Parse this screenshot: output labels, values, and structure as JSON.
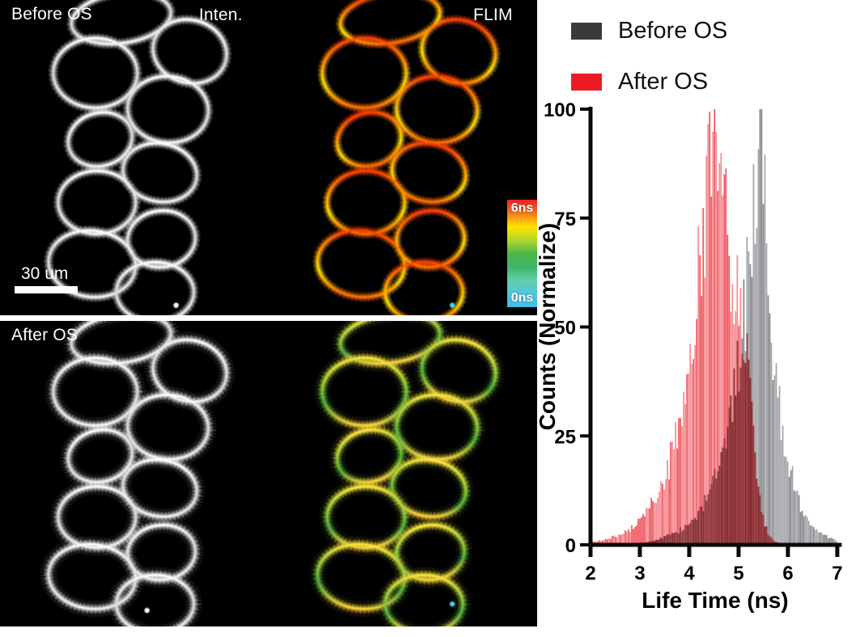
{
  "figure": {
    "panels": {
      "before": {
        "condition_label": "Before OS",
        "intensity_label": "Inten.",
        "flim_label": "FLIM"
      },
      "after": {
        "condition_label": "After OS"
      }
    },
    "scale_bar": {
      "label": "30 um"
    },
    "colorbar": {
      "top_label": "6ns",
      "bottom_label": "0ns",
      "gradient": [
        "#ec1c24",
        "#f4781f",
        "#ffe400",
        "#b5d62c",
        "#4bb649",
        "#3db56a",
        "#62cfa9",
        "#4fc6e0",
        "#41bde8"
      ]
    },
    "flim_top_palette": [
      "#ff3d00",
      "#ff9500",
      "#ffdf00",
      "#ff6a00"
    ],
    "flim_bottom_palette": [
      "#ffe93c",
      "#a8d23a",
      "#4fb03c",
      "#ffd23c"
    ],
    "intensity_palette": [
      "#ffffff",
      "#d8d8d8",
      "#f4f4f4"
    ]
  },
  "legend": {
    "items": [
      {
        "label": "Before OS",
        "color": "#3a3a3a"
      },
      {
        "label": "After OS",
        "color": "#ed1c24"
      }
    ]
  },
  "chart_data": {
    "type": "bar",
    "title": "",
    "xlabel": "Life Time (ns)",
    "ylabel": "Counts  (Normalize)",
    "xlim": [
      2,
      7
    ],
    "ylim": [
      0,
      100
    ],
    "x_ticks": [
      2,
      3,
      4,
      5,
      6,
      7
    ],
    "y_ticks": [
      0,
      25,
      50,
      75,
      100
    ],
    "grid": false,
    "legend_position": "top-left",
    "x_start": 2.0,
    "x_step": 0.1,
    "series": [
      {
        "name": "Before OS",
        "color": "#96969b",
        "values": [
          0,
          0,
          0,
          0,
          0,
          0,
          0.2,
          0.2,
          0.3,
          0.4,
          0.5,
          0.7,
          0.9,
          1.2,
          1.5,
          2,
          2.5,
          3,
          3.7,
          4.5,
          5.5,
          7,
          9,
          11,
          14,
          17,
          21,
          26,
          33,
          40,
          47,
          57,
          72,
          86,
          96,
          93,
          62,
          45,
          36,
          29,
          22,
          16,
          11,
          8,
          6,
          4,
          3,
          2.5,
          2,
          1.5,
          1
        ]
      },
      {
        "name": "After OS",
        "color": "#f2757c",
        "edge_color": "#ed1c24",
        "values": [
          0.8,
          1,
          1.2,
          1.5,
          1.8,
          2.2,
          2.7,
          3.3,
          4,
          5,
          6.5,
          8,
          10,
          12,
          14,
          17,
          21,
          26,
          32,
          40,
          50,
          60,
          72,
          84,
          94,
          100,
          96,
          86,
          75,
          67,
          62,
          55,
          42,
          26,
          13,
          6,
          2.5,
          1,
          0.5,
          0.3,
          0.2,
          0,
          0,
          0,
          0,
          0,
          0,
          0,
          0,
          0,
          0
        ]
      }
    ],
    "overlap_color": "#7e262b"
  }
}
